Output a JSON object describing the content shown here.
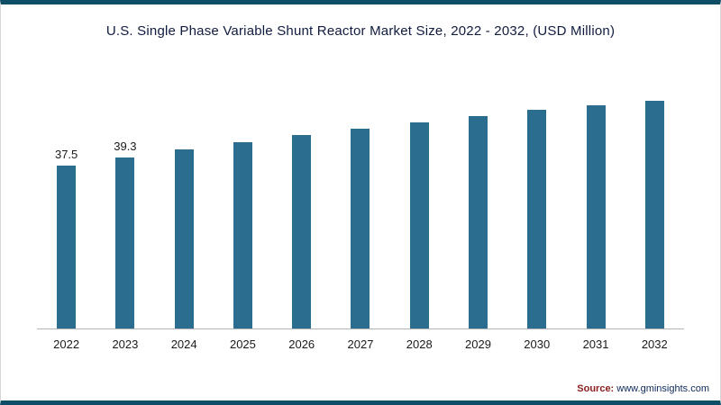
{
  "page": {
    "source_label": "Source:",
    "source_value": "www.gminsights.com"
  },
  "colors": {
    "bar": "#2a6d8e",
    "frame_accent": "#0d4e66",
    "axis_line": "#b3b3b3",
    "title_text": "#101c3f"
  },
  "chart_data": {
    "type": "bar",
    "title": "U.S. Single Phase Variable Shunt Reactor Market Size, 2022 - 2032, (USD Million)",
    "categories": [
      "2022",
      "2023",
      "2024",
      "2025",
      "2026",
      "2027",
      "2028",
      "2029",
      "2030",
      "2031",
      "2032"
    ],
    "values": [
      37.5,
      39.3,
      41.1,
      42.8,
      44.4,
      46.0,
      47.4,
      48.9,
      50.2,
      51.3,
      52.4
    ],
    "value_labels": [
      "37.5",
      "39.3",
      "",
      "",
      "",
      "",
      "",
      "",
      "",
      "",
      ""
    ],
    "xlabel": "",
    "ylabel": "",
    "ylim": [
      0,
      60
    ],
    "bar_color": "#2a6d8e",
    "grid": false,
    "legend": "none",
    "source": "Source: www.gminsights.com"
  }
}
